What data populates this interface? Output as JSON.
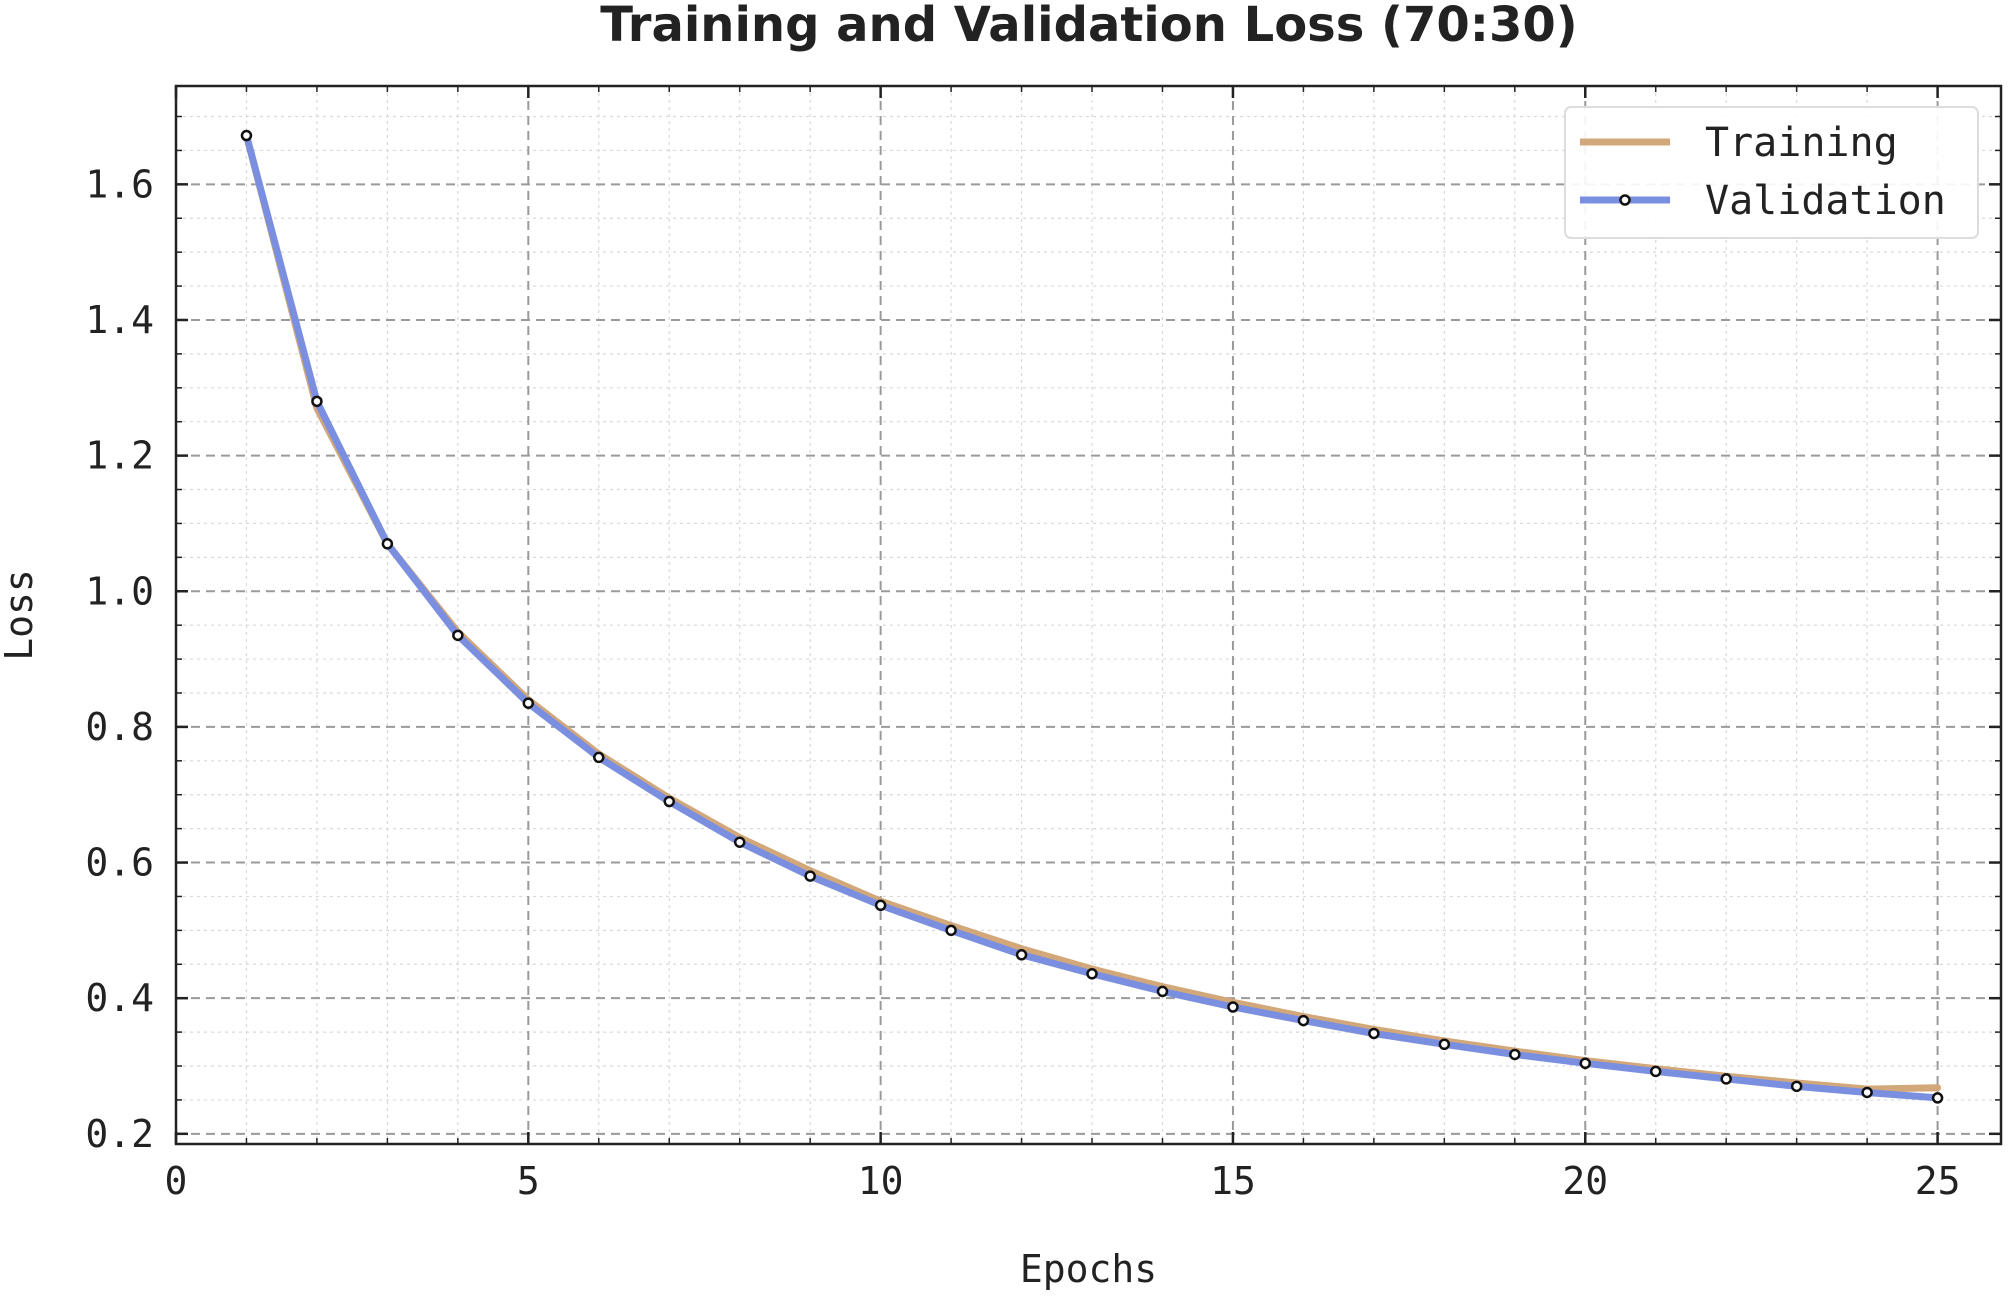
{
  "chart_data": {
    "type": "line",
    "title": "Training and Validation Loss (70:30)",
    "xlabel": "Epochs",
    "ylabel": "Loss",
    "xlim": [
      0,
      25.9
    ],
    "ylim": [
      0.185,
      1.745
    ],
    "xticks": [
      0,
      5,
      10,
      15,
      20,
      25
    ],
    "yticks": [
      0.2,
      0.4,
      0.6,
      0.8,
      1.0,
      1.2,
      1.4,
      1.6
    ],
    "ytick_labels": [
      "0.2",
      "0.4",
      "0.6",
      "0.8",
      "1.0",
      "1.2",
      "1.4",
      "1.6"
    ],
    "grid": "major dashed, minor dotted",
    "legend_position": "top-right",
    "x": [
      1,
      2,
      3,
      4,
      5,
      6,
      7,
      8,
      9,
      10,
      11,
      12,
      13,
      14,
      15,
      16,
      17,
      18,
      19,
      20,
      21,
      22,
      23,
      24,
      25
    ],
    "series": [
      {
        "name": "Training",
        "color": "#d2a87a",
        "marker": "none",
        "values": [
          1.672,
          1.27,
          1.07,
          0.94,
          0.84,
          0.76,
          0.695,
          0.637,
          0.588,
          0.543,
          0.507,
          0.473,
          0.443,
          0.417,
          0.394,
          0.373,
          0.354,
          0.337,
          0.322,
          0.308,
          0.296,
          0.285,
          0.275,
          0.266,
          0.268
        ]
      },
      {
        "name": "Validation",
        "color": "#7b8fe0",
        "marker": "circle",
        "values": [
          1.672,
          1.28,
          1.07,
          0.935,
          0.835,
          0.755,
          0.69,
          0.63,
          0.58,
          0.537,
          0.5,
          0.464,
          0.436,
          0.41,
          0.387,
          0.367,
          0.348,
          0.332,
          0.317,
          0.304,
          0.292,
          0.281,
          0.27,
          0.261,
          0.253
        ]
      }
    ]
  }
}
